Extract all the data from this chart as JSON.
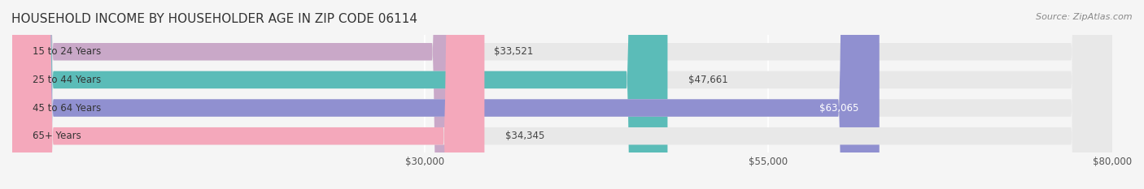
{
  "title": "HOUSEHOLD INCOME BY HOUSEHOLDER AGE IN ZIP CODE 06114",
  "source": "Source: ZipAtlas.com",
  "categories": [
    "15 to 24 Years",
    "25 to 44 Years",
    "45 to 64 Years",
    "65+ Years"
  ],
  "values": [
    33521,
    47661,
    63065,
    34345
  ],
  "bar_colors": [
    "#c9a8c8",
    "#5bbcb8",
    "#9090d0",
    "#f4a8bb"
  ],
  "bar_labels": [
    "$33,521",
    "$47,661",
    "$63,065",
    "$34,345"
  ],
  "xlim": [
    0,
    80000
  ],
  "xticks": [
    30000,
    55000,
    80000
  ],
  "xticklabels": [
    "$30,000",
    "$55,000",
    "$80,000"
  ],
  "bg_color": "#f5f5f5",
  "bar_bg_color": "#e8e8e8",
  "title_fontsize": 11,
  "label_fontsize": 8.5,
  "tick_fontsize": 8.5,
  "source_fontsize": 8,
  "bar_height": 0.62,
  "x_axis_offset": 30000
}
